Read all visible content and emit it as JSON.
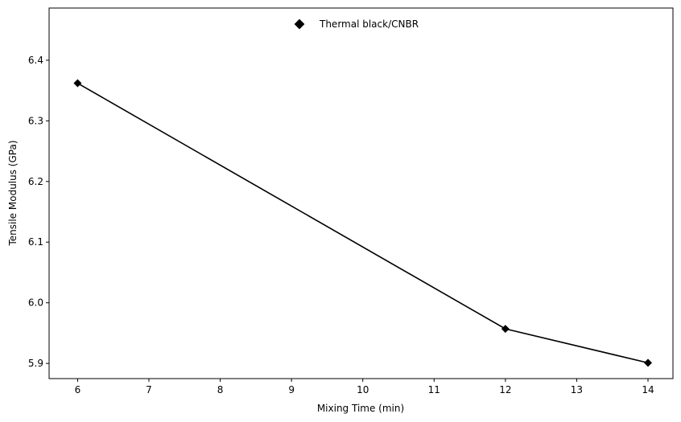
{
  "chart_data": {
    "type": "line",
    "title": "",
    "xlabel": "Mixing Time (min)",
    "ylabel": "Tensile Modulus (GPa)",
    "xlim": [
      5.6,
      14.35
    ],
    "ylim": [
      5.875,
      6.486
    ],
    "x_ticks": [
      6,
      7,
      8,
      9,
      10,
      11,
      12,
      13,
      14
    ],
    "y_ticks": [
      5.9,
      6.0,
      6.1,
      6.2,
      6.3,
      6.4
    ],
    "grid": false,
    "legend_position": "top-center",
    "series": [
      {
        "name": "Thermal black/CNBR",
        "color": "#000000",
        "marker": "diamond",
        "x": [
          6,
          12,
          14
        ],
        "y": [
          6.362,
          5.957,
          5.901
        ]
      }
    ]
  }
}
